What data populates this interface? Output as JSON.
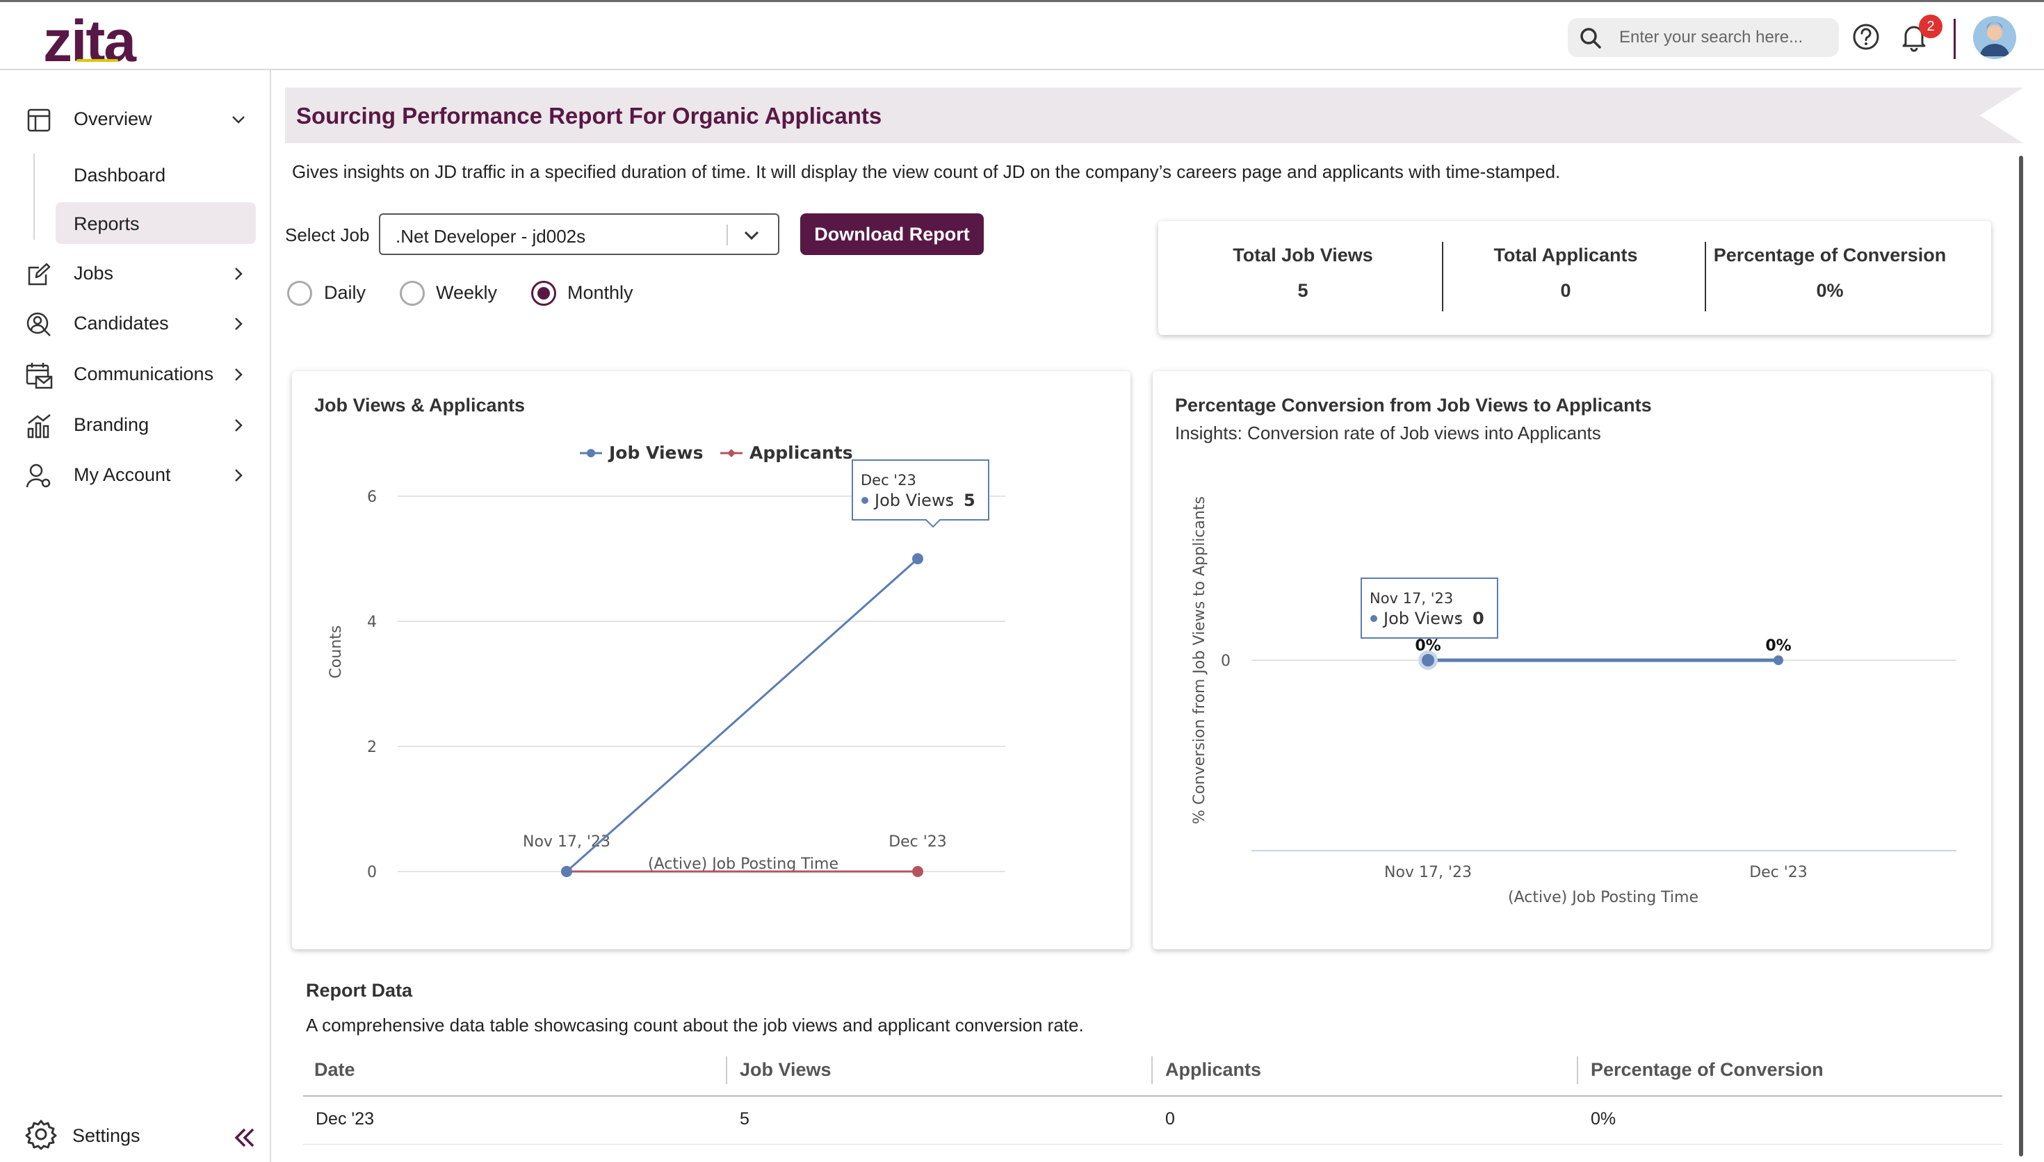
{
  "header": {
    "logo": "zita",
    "search_placeholder": "Enter your search here...",
    "notification_count": "2",
    "brand_color": "#581845"
  },
  "sidebar": {
    "overview": "Overview",
    "dashboard": "Dashboard",
    "reports": "Reports",
    "jobs": "Jobs",
    "candidates": "Candidates",
    "communications": "Communications",
    "branding": "Branding",
    "my_account": "My Account",
    "settings": "Settings"
  },
  "page": {
    "title": "Sourcing Performance Report For Organic Applicants",
    "description": "Gives insights on JD traffic in a specified duration of time. It will display the view count of JD on the company’s careers page and applicants with time-stamped.",
    "select_label": "Select Job",
    "select_value": ".Net Developer - jd002s",
    "download_label": "Download Report",
    "radios": {
      "daily": "Daily",
      "weekly": "Weekly",
      "monthly": "Monthly",
      "selected": "monthly"
    }
  },
  "stats": {
    "total_job_views_label": "Total Job Views",
    "total_job_views": "5",
    "total_applicants_label": "Total Applicants",
    "total_applicants": "0",
    "conversion_label": "Percentage of Conversion",
    "conversion": "0%"
  },
  "chart_data": [
    {
      "type": "line",
      "title": "Job Views & Applicants",
      "categories": [
        "Nov 17, '23",
        "Dec '23"
      ],
      "series": [
        {
          "name": "Job Views",
          "values": [
            0,
            5
          ],
          "color": "#5b7db1"
        },
        {
          "name": "Applicants",
          "values": [
            0,
            0
          ],
          "color": "#b5545c"
        }
      ],
      "xlabel": "(Active) Job Posting Time",
      "ylabel": "Counts",
      "ylim": [
        0,
        6
      ],
      "yticks": [
        "0",
        "2",
        "4",
        "6"
      ],
      "tooltip": {
        "title": "Dec '23",
        "series": "Job Views",
        "value": "5"
      }
    },
    {
      "type": "line",
      "title": "Percentage Conversion from Job Views to Applicants",
      "subtitle": "Insights: Conversion rate of Job views into Applicants",
      "categories": [
        "Nov 17, '23",
        "Dec '23"
      ],
      "series": [
        {
          "name": "Job Views",
          "values": [
            0,
            0
          ],
          "labels": [
            "0%",
            "0%"
          ],
          "color": "#5b7db1"
        }
      ],
      "xlabel": "(Active) Job Posting Time",
      "ylabel": "% Conversion from Job Views to Applicants",
      "yticks": [
        "0"
      ],
      "tooltip": {
        "title": "Nov 17, '23",
        "series": "Job Views",
        "value": "0"
      }
    }
  ],
  "report": {
    "title": "Report Data",
    "description": "A comprehensive data table showcasing count about the job views and applicant conversion rate.",
    "columns": [
      "Date",
      "Job Views",
      "Applicants",
      "Percentage of Conversion"
    ],
    "rows": [
      [
        "Dec '23",
        "5",
        "0",
        "0%"
      ]
    ]
  }
}
